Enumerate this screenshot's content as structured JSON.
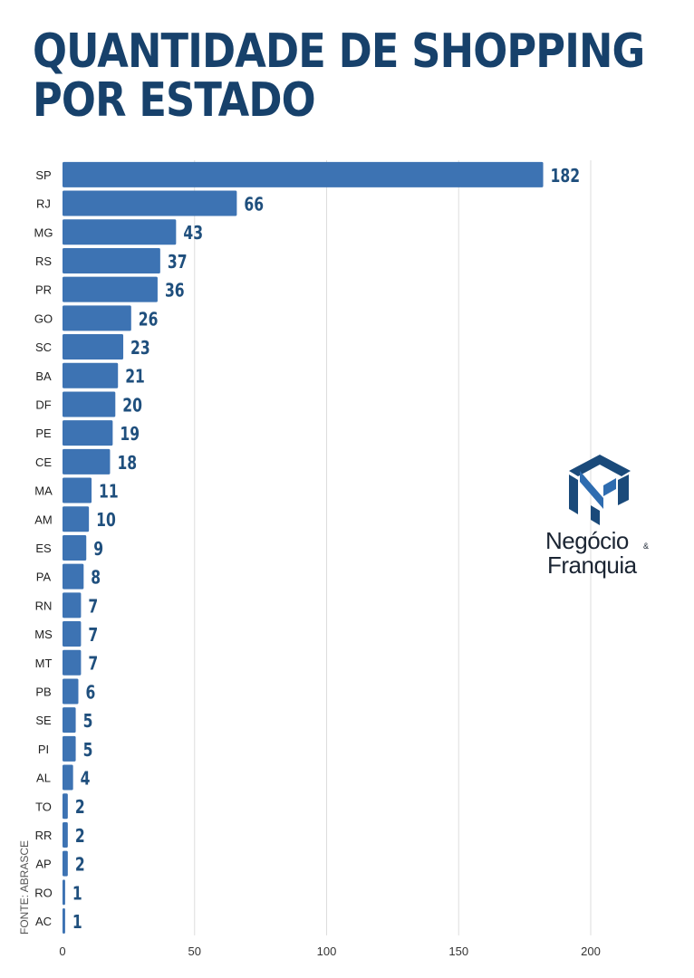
{
  "title_lines": [
    "QUANTIDADE DE SHOPPING",
    "POR ESTADO"
  ],
  "source": "FONTE: ABRASCE",
  "logo": {
    "line1": "Negócio",
    "amp": "&",
    "line2": "Franquia"
  },
  "colors": {
    "bar": "#3d73b3",
    "title": "#17416b",
    "value_label": "#1f4f7d",
    "grid": "#dddddd"
  },
  "chart_data": {
    "type": "bar",
    "orientation": "horizontal",
    "categories": [
      "SP",
      "RJ",
      "MG",
      "RS",
      "PR",
      "GO",
      "SC",
      "BA",
      "DF",
      "PE",
      "CE",
      "MA",
      "AM",
      "ES",
      "PA",
      "RN",
      "MS",
      "MT",
      "PB",
      "SE",
      "PI",
      "AL",
      "TO",
      "RR",
      "AP",
      "RO",
      "AC"
    ],
    "values": [
      182,
      66,
      43,
      37,
      36,
      26,
      23,
      21,
      20,
      19,
      18,
      11,
      10,
      9,
      8,
      7,
      7,
      7,
      6,
      5,
      5,
      4,
      2,
      2,
      2,
      1,
      1
    ],
    "xticks": [
      0,
      50,
      100,
      150,
      200
    ],
    "xlim": [
      0,
      200
    ],
    "grid": true,
    "data_labels": true
  }
}
